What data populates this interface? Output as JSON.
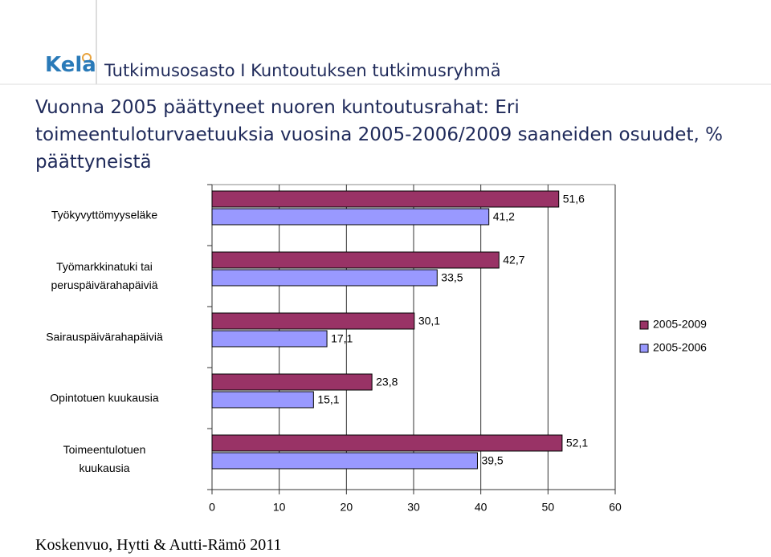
{
  "header": {
    "logo": "Kela",
    "unit": "Tutkimusosasto I Kuntoutuksen tutkimusryhmä"
  },
  "footer": "Koskenvuo, Hytti & Autti-Rämö 2011",
  "chart_data": {
    "type": "hbar",
    "title": "Vuonna 2005 päättyneet nuoren kuntoutusrahat: Eri\ntoimeentuloturvaetuuksia vuosina 2005-2006/2009 saaneiden osuudet, %\npäättyneistä",
    "categories": [
      "Työkyvyttömyyseläke",
      "Työmarkkinatuki tai\nperuspäivärahapäiviä",
      "Sairauspäivärahapäiviä",
      "Opintotuen kuukausia",
      "Toimeentulotuen\nkuukausia"
    ],
    "series": [
      {
        "name": "2005-2009",
        "color": "#993366",
        "values": [
          51.6,
          42.7,
          30.1,
          23.8,
          52.1
        ],
        "value_labels": [
          "51,6",
          "42,7",
          "30,1",
          "23,8",
          "52,1"
        ]
      },
      {
        "name": "2005-2006",
        "color": "#9999ff",
        "values": [
          41.2,
          33.5,
          17.1,
          15.1,
          39.5
        ],
        "value_labels": [
          "41,2",
          "33,5",
          "17,1",
          "15,1",
          "39,5"
        ]
      }
    ],
    "xlim": [
      0,
      60
    ],
    "xticks": [
      0,
      10,
      20,
      30,
      40,
      50,
      60
    ],
    "grid": true,
    "legend": "right"
  }
}
